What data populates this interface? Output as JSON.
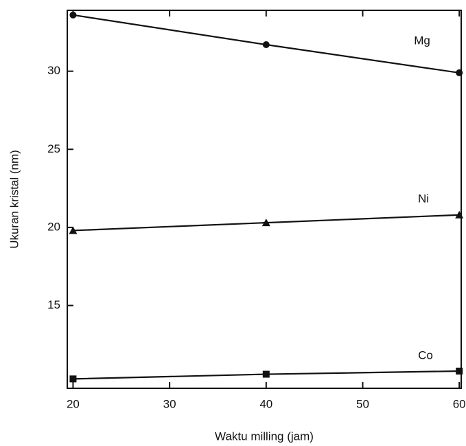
{
  "chart_data": {
    "type": "line",
    "x_label": "Waktu milling (jam)",
    "y_label": "Ukuran kristal (nm)",
    "x": [
      20,
      40,
      60
    ],
    "series": [
      {
        "name": "Mg",
        "color": "#111111",
        "marker": "circle",
        "values": [
          33.6,
          31.7,
          29.9
        ]
      },
      {
        "name": "Ni",
        "color": "#111111",
        "marker": "triangle",
        "values": [
          19.8,
          20.3,
          20.8
        ]
      },
      {
        "name": "Co",
        "color": "#111111",
        "marker": "square",
        "values": [
          10.3,
          10.6,
          10.8
        ]
      }
    ],
    "xlim": [
      19.4,
      60.2
    ],
    "xticks": [
      20,
      30,
      40,
      50,
      60
    ],
    "ylim": [
      9.7,
      33.9
    ],
    "yticks": [
      15,
      20,
      25,
      30
    ],
    "grid": false
  }
}
